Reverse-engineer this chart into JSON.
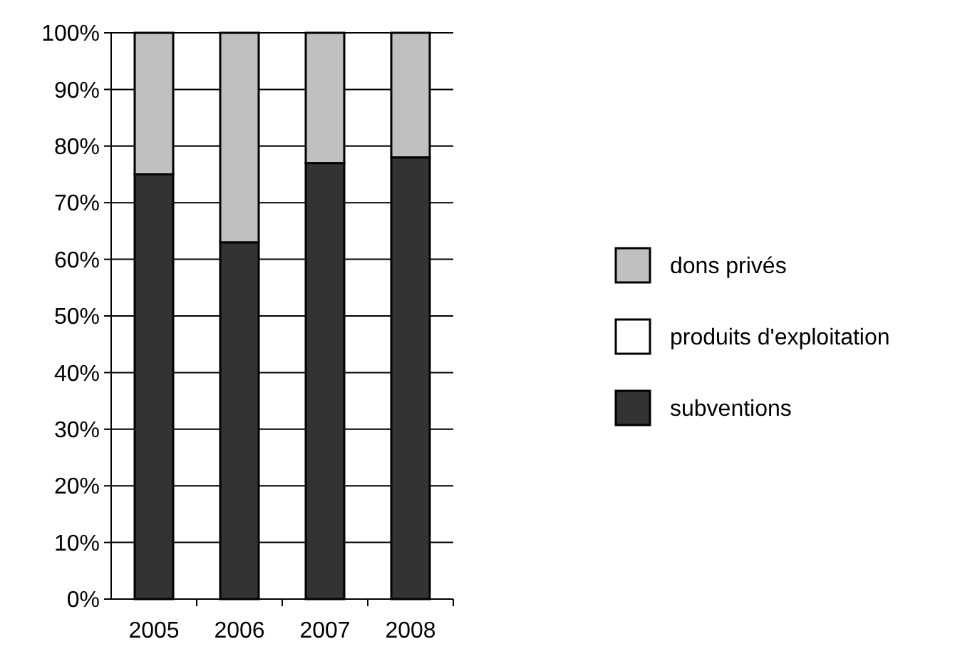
{
  "chart_data": {
    "type": "bar",
    "stacked": true,
    "categories": [
      "2005",
      "2006",
      "2007",
      "2008"
    ],
    "series": [
      {
        "name": "subventions",
        "color": "#333333",
        "values": [
          75,
          63,
          77,
          78
        ]
      },
      {
        "name": "produits d'exploitation",
        "color": "#ffffff",
        "values": [
          0,
          0,
          0,
          0
        ]
      },
      {
        "name": "dons privés",
        "color": "#c0c0c0",
        "values": [
          25,
          37,
          23,
          22
        ]
      }
    ],
    "ylim": [
      0,
      100
    ],
    "yticks": [
      {
        "value": 0,
        "label": "0%"
      },
      {
        "value": 10,
        "label": "10%"
      },
      {
        "value": 20,
        "label": "20%"
      },
      {
        "value": 30,
        "label": "30%"
      },
      {
        "value": 40,
        "label": "40%"
      },
      {
        "value": 50,
        "label": "50%"
      },
      {
        "value": 60,
        "label": "60%"
      },
      {
        "value": 70,
        "label": "70%"
      },
      {
        "value": 80,
        "label": "80%"
      },
      {
        "value": 90,
        "label": "90%"
      },
      {
        "value": 100,
        "label": "100%"
      }
    ],
    "grid": "y",
    "legend": "right"
  }
}
